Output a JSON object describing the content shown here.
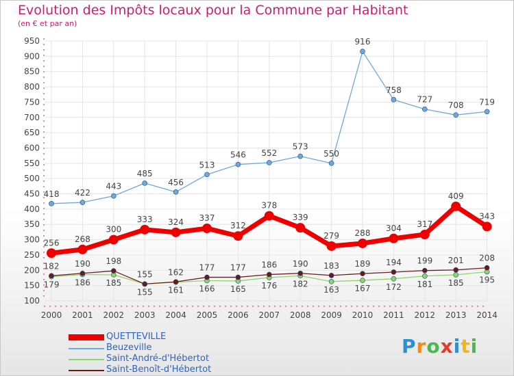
{
  "page": {
    "title": "Evolution des Impôts locaux pour la Commune par Habitant",
    "subtitle": "(en € et par an)",
    "logo": "Proxiti"
  },
  "colors": {
    "title": "#d01c6c",
    "legend_text": "#2e63c4",
    "axis_text": "#444444",
    "grid": "#e4e4e4",
    "axis": "#c81c5c"
  },
  "chart_data": {
    "type": "line",
    "title": "Evolution des Impôts locaux pour la Commune par Habitant",
    "subtitle": "(en € et par an)",
    "categories": [
      "2000",
      "2001",
      "2002",
      "2003",
      "2004",
      "2005",
      "2006",
      "2007",
      "2008",
      "2009",
      "2010",
      "2011",
      "2012",
      "2013",
      "2014"
    ],
    "ylim": [
      100,
      950
    ],
    "yticks": [
      100,
      150,
      200,
      250,
      300,
      350,
      400,
      450,
      500,
      550,
      600,
      650,
      700,
      750,
      800,
      850,
      900,
      950
    ],
    "grid": true,
    "legend_position": "bottom-left",
    "series": [
      {
        "name": "QUETTEVILLE",
        "color": "#ee0000",
        "values": [
          256,
          268,
          300,
          333,
          324,
          337,
          312,
          378,
          339,
          279,
          288,
          304,
          317,
          409,
          343
        ]
      },
      {
        "name": "Beuzeville",
        "color": "#6fa8dc",
        "values": [
          418,
          422,
          443,
          485,
          456,
          513,
          546,
          552,
          573,
          550,
          916,
          758,
          727,
          708,
          719
        ]
      },
      {
        "name": "Saint-André-d'Hébertot",
        "color": "#8fd46a",
        "values": [
          179,
          186,
          185,
          155,
          161,
          166,
          165,
          176,
          182,
          163,
          167,
          172,
          181,
          185,
          195
        ]
      },
      {
        "name": "Saint-Benoît-d'Hébertot",
        "color": "#6b1a1a",
        "values": [
          182,
          190,
          198,
          155,
          162,
          177,
          177,
          186,
          190,
          183,
          189,
          194,
          199,
          201,
          208
        ]
      }
    ]
  }
}
